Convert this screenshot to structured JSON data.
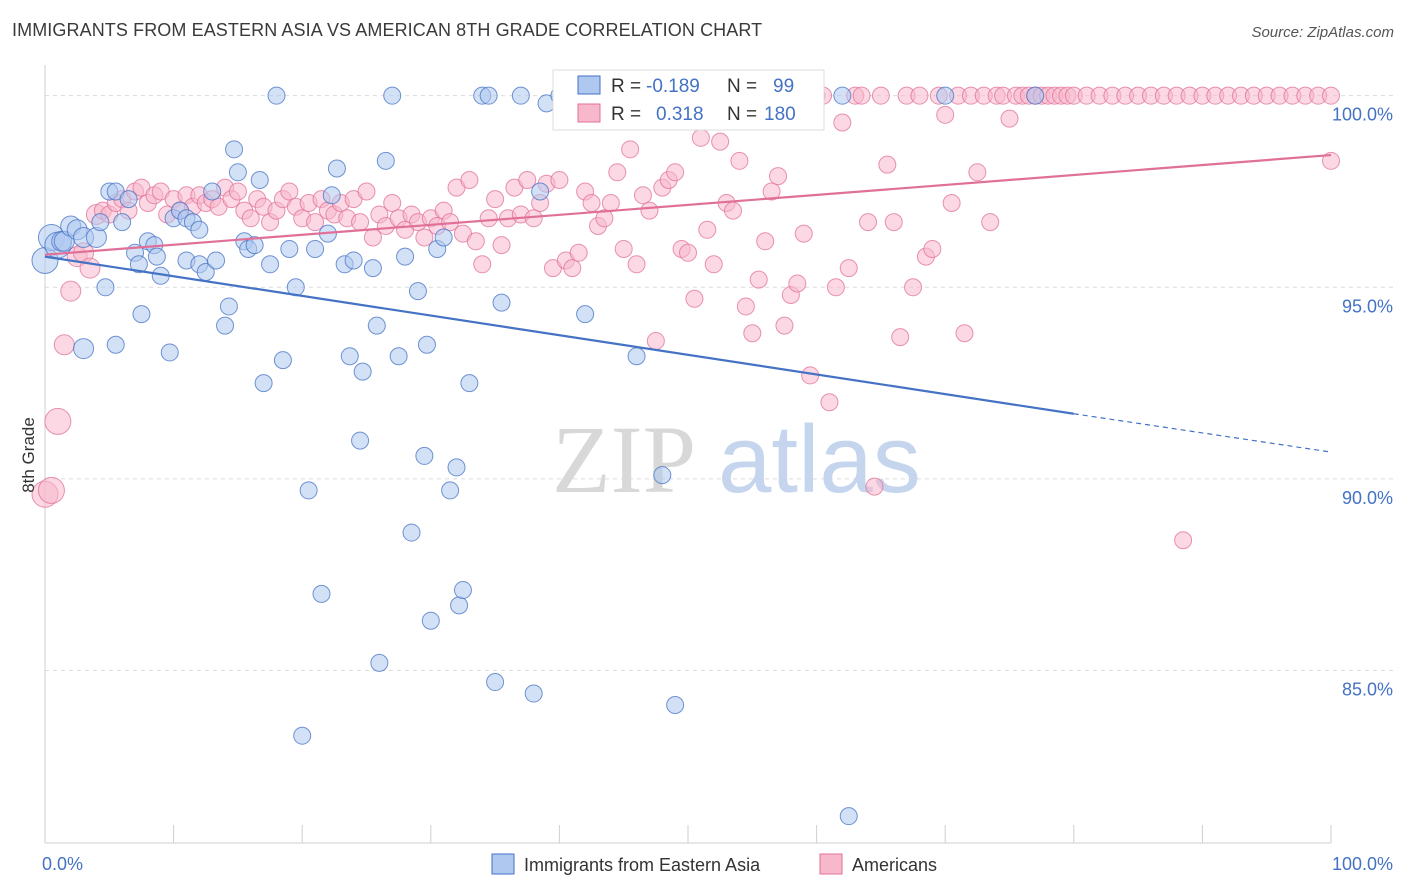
{
  "title": "IMMIGRANTS FROM EASTERN ASIA VS AMERICAN 8TH GRADE CORRELATION CHART",
  "source": "Source: ZipAtlas.com",
  "watermark": {
    "zip": "ZIP",
    "atlas": "atlas"
  },
  "colors": {
    "blue": "#4472c4",
    "blue_fill": "#aec8f0",
    "pink": "#e07098",
    "pink_fill": "#f7b8cc"
  },
  "legend_top": [
    {
      "r_label": "R =",
      "r_value": "-0.189",
      "n_label": "N =",
      "n_value": "99"
    },
    {
      "r_label": "R =",
      "r_value": "0.318",
      "n_label": "N =",
      "n_value": "180"
    }
  ],
  "legend_bottom": [
    "Immigrants from Eastern Asia",
    "Americans"
  ],
  "chart_data": {
    "type": "scatter",
    "title": "IMMIGRANTS FROM EASTERN ASIA VS AMERICAN 8TH GRADE CORRELATION CHART",
    "ylabel": "8th Grade",
    "xlabel": "",
    "xlim": [
      0,
      100
    ],
    "ylim": [
      80.5,
      100.8
    ],
    "x_tick_labels": [
      "0.0%",
      "100.0%"
    ],
    "y_ticks": [
      85,
      90,
      95,
      100
    ],
    "y_tick_labels": [
      "85.0%",
      "90.0%",
      "95.0%",
      "100.0%"
    ],
    "grid": true,
    "legend_placement": "top-center",
    "series": [
      {
        "name": "Immigrants from Eastern Asia",
        "color": "#4472c4",
        "trend": {
          "x0": 0,
          "y0": 95.8,
          "x1": 80,
          "y1": 91.7,
          "dash_to_x": 100,
          "dash_to_y": 90.7
        },
        "points": [
          [
            0,
            95.7
          ],
          [
            0.5,
            96.3
          ],
          [
            1,
            96.1
          ],
          [
            1.3,
            96.2
          ],
          [
            1.5,
            96.2
          ],
          [
            2,
            96.6
          ],
          [
            2.5,
            96.5
          ],
          [
            3,
            96.3
          ],
          [
            4,
            96.3
          ],
          [
            4.3,
            96.7
          ],
          [
            4.7,
            95.0
          ],
          [
            5,
            97.5
          ],
          [
            5.5,
            97.5
          ],
          [
            6,
            96.7
          ],
          [
            6.5,
            97.3
          ],
          [
            3,
            93.4
          ],
          [
            5.5,
            93.5
          ],
          [
            7,
            95.9
          ],
          [
            7.3,
            95.6
          ],
          [
            7.5,
            94.3
          ],
          [
            8,
            96.2
          ],
          [
            8.5,
            96.1
          ],
          [
            8.7,
            95.8
          ],
          [
            9,
            95.3
          ],
          [
            9.7,
            93.3
          ],
          [
            10,
            96.8
          ],
          [
            10.5,
            97.0
          ],
          [
            11,
            96.8
          ],
          [
            11,
            95.7
          ],
          [
            11.5,
            96.7
          ],
          [
            12,
            96.5
          ],
          [
            12,
            95.6
          ],
          [
            12.5,
            95.4
          ],
          [
            13,
            97.5
          ],
          [
            13.3,
            95.7
          ],
          [
            14,
            94.0
          ],
          [
            14.3,
            94.5
          ],
          [
            14.7,
            98.6
          ],
          [
            15,
            98.0
          ],
          [
            15.5,
            96.2
          ],
          [
            15.8,
            96.0
          ],
          [
            16.3,
            96.1
          ],
          [
            16.7,
            97.8
          ],
          [
            17,
            92.5
          ],
          [
            17.5,
            95.6
          ],
          [
            18,
            100
          ],
          [
            18.5,
            93.1
          ],
          [
            19,
            96.0
          ],
          [
            19.5,
            95.0
          ],
          [
            20,
            83.3
          ],
          [
            20.5,
            89.7
          ],
          [
            21,
            96.0
          ],
          [
            21.5,
            87.0
          ],
          [
            22,
            96.4
          ],
          [
            22.3,
            97.4
          ],
          [
            22.7,
            98.1
          ],
          [
            23.3,
            95.6
          ],
          [
            23.7,
            93.2
          ],
          [
            24,
            95.7
          ],
          [
            24.5,
            91.0
          ],
          [
            24.7,
            92.8
          ],
          [
            25.5,
            95.5
          ],
          [
            25.8,
            94.0
          ],
          [
            26,
            85.2
          ],
          [
            26.5,
            98.3
          ],
          [
            27,
            100
          ],
          [
            27.5,
            93.2
          ],
          [
            28,
            95.8
          ],
          [
            28.5,
            88.6
          ],
          [
            29,
            94.9
          ],
          [
            29.5,
            90.6
          ],
          [
            29.7,
            93.5
          ],
          [
            30,
            86.3
          ],
          [
            30.5,
            96.0
          ],
          [
            31,
            96.3
          ],
          [
            31.5,
            89.7
          ],
          [
            32,
            90.3
          ],
          [
            32.2,
            86.7
          ],
          [
            32.5,
            87.1
          ],
          [
            33,
            92.5
          ],
          [
            34,
            100
          ],
          [
            34.5,
            100
          ],
          [
            35,
            84.7
          ],
          [
            35.5,
            94.6
          ],
          [
            37,
            100
          ],
          [
            38,
            84.4
          ],
          [
            38.5,
            97.5
          ],
          [
            39,
            99.8
          ],
          [
            40,
            100
          ],
          [
            42,
            94.3
          ],
          [
            46,
            93.2
          ],
          [
            48,
            90.1
          ],
          [
            49,
            84.1
          ],
          [
            54,
            100
          ],
          [
            62,
            100
          ],
          [
            62.5,
            81.2
          ],
          [
            70,
            100
          ],
          [
            77,
            100
          ]
        ]
      },
      {
        "name": "Americans",
        "color": "#e07098",
        "trend": {
          "x0": 0,
          "y0": 95.85,
          "x1": 100,
          "y1": 98.45
        },
        "points": [
          [
            0,
            89.6
          ],
          [
            0.5,
            89.7
          ],
          [
            1,
            91.5
          ],
          [
            1.5,
            93.5
          ],
          [
            2,
            94.9
          ],
          [
            2.5,
            95.8
          ],
          [
            3,
            95.9
          ],
          [
            3.5,
            95.5
          ],
          [
            4,
            96.9
          ],
          [
            4.5,
            97.0
          ],
          [
            5,
            96.9
          ],
          [
            5.5,
            97.2
          ],
          [
            6,
            97.3
          ],
          [
            6.5,
            97.0
          ],
          [
            7,
            97.5
          ],
          [
            7.5,
            97.6
          ],
          [
            8,
            97.2
          ],
          [
            8.5,
            97.4
          ],
          [
            9,
            97.5
          ],
          [
            9.5,
            96.9
          ],
          [
            10,
            97.3
          ],
          [
            10.5,
            97.0
          ],
          [
            11,
            97.4
          ],
          [
            11.5,
            97.1
          ],
          [
            12,
            97.4
          ],
          [
            12.5,
            97.2
          ],
          [
            13,
            97.3
          ],
          [
            13.5,
            97.1
          ],
          [
            14,
            97.6
          ],
          [
            14.5,
            97.3
          ],
          [
            15,
            97.5
          ],
          [
            15.5,
            97.0
          ],
          [
            16,
            96.8
          ],
          [
            16.5,
            97.3
          ],
          [
            17,
            97.1
          ],
          [
            17.5,
            96.7
          ],
          [
            18,
            97.0
          ],
          [
            18.5,
            97.3
          ],
          [
            19,
            97.5
          ],
          [
            19.5,
            97.1
          ],
          [
            20,
            96.8
          ],
          [
            20.5,
            97.2
          ],
          [
            21,
            96.7
          ],
          [
            21.5,
            97.3
          ],
          [
            22,
            97.0
          ],
          [
            22.5,
            96.9
          ],
          [
            23,
            97.2
          ],
          [
            23.5,
            96.8
          ],
          [
            24,
            97.3
          ],
          [
            24.5,
            96.7
          ],
          [
            25,
            97.5
          ],
          [
            25.5,
            96.3
          ],
          [
            26,
            96.9
          ],
          [
            26.5,
            96.6
          ],
          [
            27,
            97.2
          ],
          [
            27.5,
            96.8
          ],
          [
            28,
            96.5
          ],
          [
            28.5,
            96.9
          ],
          [
            29,
            96.7
          ],
          [
            29.5,
            96.3
          ],
          [
            30,
            96.8
          ],
          [
            30.5,
            96.6
          ],
          [
            31,
            97.0
          ],
          [
            31.5,
            96.7
          ],
          [
            32,
            97.6
          ],
          [
            32.5,
            96.4
          ],
          [
            33,
            97.8
          ],
          [
            33.5,
            96.2
          ],
          [
            34,
            95.6
          ],
          [
            34.5,
            96.8
          ],
          [
            35,
            97.3
          ],
          [
            35.5,
            96.1
          ],
          [
            36,
            96.8
          ],
          [
            36.5,
            97.6
          ],
          [
            37,
            96.9
          ],
          [
            37.5,
            97.8
          ],
          [
            38,
            96.8
          ],
          [
            38.5,
            97.2
          ],
          [
            39,
            97.7
          ],
          [
            39.5,
            95.5
          ],
          [
            40,
            97.8
          ],
          [
            40.5,
            95.7
          ],
          [
            41,
            95.5
          ],
          [
            41.5,
            95.9
          ],
          [
            42,
            97.5
          ],
          [
            42.5,
            97.2
          ],
          [
            43,
            96.6
          ],
          [
            43.5,
            96.8
          ],
          [
            44,
            97.2
          ],
          [
            44.5,
            98.0
          ],
          [
            45,
            96.0
          ],
          [
            45.5,
            98.6
          ],
          [
            46,
            95.6
          ],
          [
            46.5,
            97.4
          ],
          [
            47,
            97.0
          ],
          [
            47.5,
            93.6
          ],
          [
            48,
            97.6
          ],
          [
            48.5,
            97.8
          ],
          [
            49,
            98.0
          ],
          [
            49.5,
            96.0
          ],
          [
            50,
            95.9
          ],
          [
            50.5,
            94.7
          ],
          [
            51,
            98.9
          ],
          [
            51.5,
            96.5
          ],
          [
            52,
            95.6
          ],
          [
            52.5,
            98.8
          ],
          [
            53,
            97.2
          ],
          [
            53.5,
            97.0
          ],
          [
            54,
            98.3
          ],
          [
            54.5,
            94.5
          ],
          [
            55,
            93.8
          ],
          [
            55.5,
            95.2
          ],
          [
            56,
            96.2
          ],
          [
            56.5,
            97.5
          ],
          [
            57,
            97.9
          ],
          [
            57.5,
            94.0
          ],
          [
            58,
            94.8
          ],
          [
            58.5,
            95.1
          ],
          [
            59,
            96.4
          ],
          [
            59.5,
            92.7
          ],
          [
            60,
            100
          ],
          [
            60.5,
            100
          ],
          [
            61,
            92.0
          ],
          [
            61.5,
            95.0
          ],
          [
            62,
            99.3
          ],
          [
            62.5,
            95.5
          ],
          [
            63,
            100
          ],
          [
            63.5,
            100
          ],
          [
            64,
            96.7
          ],
          [
            64.5,
            89.8
          ],
          [
            65,
            100
          ],
          [
            65.5,
            98.2
          ],
          [
            66,
            96.7
          ],
          [
            66.5,
            93.7
          ],
          [
            67,
            100
          ],
          [
            67.5,
            95.0
          ],
          [
            68,
            100
          ],
          [
            68.5,
            95.8
          ],
          [
            69,
            96.0
          ],
          [
            69.5,
            100
          ],
          [
            70,
            99.5
          ],
          [
            70.5,
            97.2
          ],
          [
            71,
            100
          ],
          [
            71.5,
            93.8
          ],
          [
            72,
            100
          ],
          [
            72.5,
            98.0
          ],
          [
            73,
            100
          ],
          [
            73.5,
            96.7
          ],
          [
            74,
            100
          ],
          [
            74.5,
            100
          ],
          [
            75,
            99.4
          ],
          [
            75.5,
            100
          ],
          [
            76,
            100
          ],
          [
            76.5,
            100
          ],
          [
            77,
            100
          ],
          [
            77.5,
            100
          ],
          [
            78,
            100
          ],
          [
            78.5,
            100
          ],
          [
            79,
            100
          ],
          [
            79.5,
            100
          ],
          [
            80,
            100
          ],
          [
            81,
            100
          ],
          [
            82,
            100
          ],
          [
            83,
            100
          ],
          [
            84,
            100
          ],
          [
            85,
            100
          ],
          [
            86,
            100
          ],
          [
            87,
            100
          ],
          [
            88,
            100
          ],
          [
            88.5,
            88.4
          ],
          [
            89,
            100
          ],
          [
            90,
            100
          ],
          [
            91,
            100
          ],
          [
            92,
            100
          ],
          [
            93,
            100
          ],
          [
            94,
            100
          ],
          [
            95,
            100
          ],
          [
            96,
            100
          ],
          [
            97,
            100
          ],
          [
            98,
            100
          ],
          [
            99,
            100
          ],
          [
            100,
            98.3
          ],
          [
            100,
            100
          ]
        ]
      }
    ]
  }
}
